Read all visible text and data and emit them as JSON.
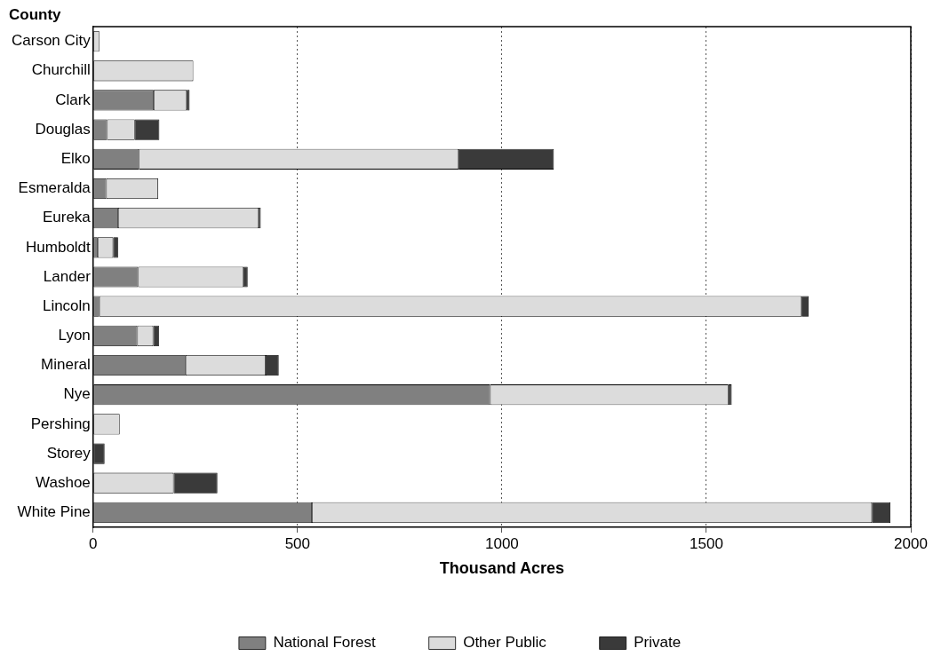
{
  "chart_data": {
    "type": "bar",
    "orientation": "horizontal",
    "stacked": true,
    "ylabel": "County",
    "xlabel": "Thousand Acres",
    "categories": [
      "Carson City",
      "Churchill",
      "Clark",
      "Douglas",
      "Elko",
      "Esmeralda",
      "Eureka",
      "Humboldt",
      "Lander",
      "Lincoln",
      "Lyon",
      "Mineral",
      "Nye",
      "Pershing",
      "Storey",
      "Washoe",
      "White Pine"
    ],
    "series": [
      {
        "name": "National Forest",
        "color": "#808080",
        "values": [
          0,
          0,
          148,
          34,
          112,
          32,
          61,
          11,
          110,
          15,
          108,
          226,
          971,
          0,
          0,
          0,
          535
        ]
      },
      {
        "name": "Other Public",
        "color": "#dcdcdc",
        "values": [
          15,
          245,
          81,
          68,
          782,
          127,
          344,
          38,
          258,
          1718,
          39,
          196,
          583,
          65,
          0,
          197,
          1370
        ]
      },
      {
        "name": "Private",
        "color": "#3a3a3a",
        "values": [
          0,
          0,
          7,
          60,
          233,
          0,
          5,
          12,
          10,
          17,
          14,
          32,
          8,
          0,
          28,
          107,
          45
        ]
      }
    ],
    "xlim": [
      0,
      2000
    ],
    "xticks": [
      0,
      500,
      1000,
      1500,
      2000
    ],
    "grid": "x",
    "legend": "bottom"
  }
}
